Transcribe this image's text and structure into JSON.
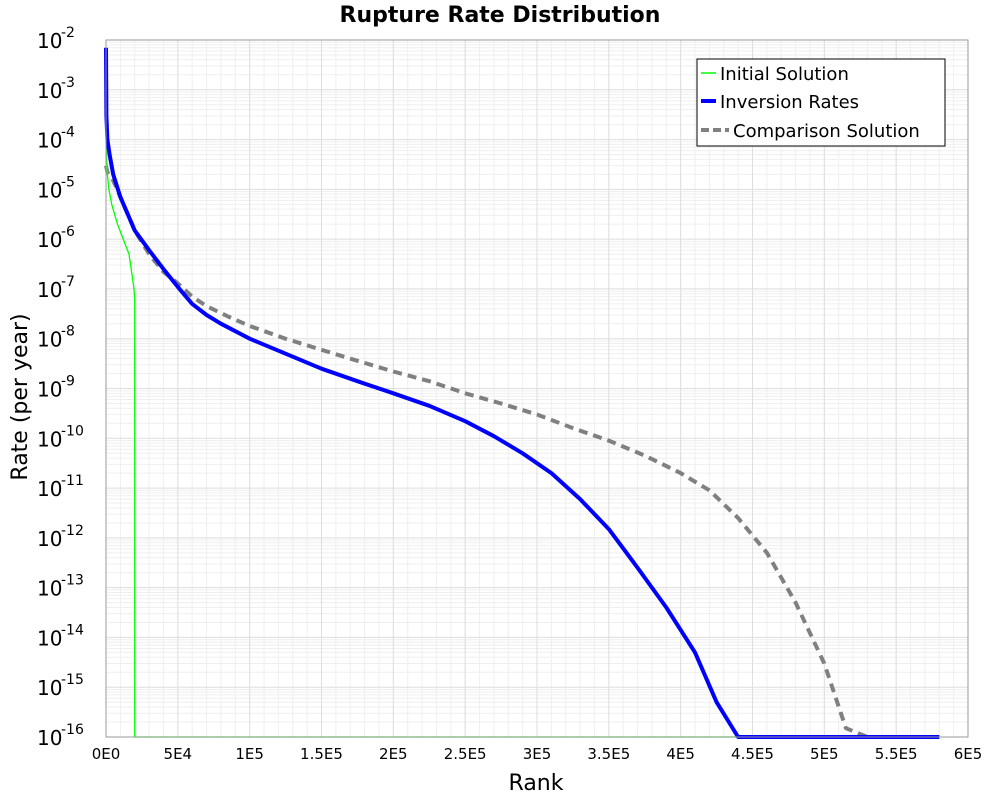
{
  "chart_data": {
    "type": "line",
    "title": "Rupture Rate Distribution",
    "xlabel": "Rank",
    "ylabel": "Rate (per year)",
    "y_scale": "log",
    "xlim": [
      0,
      600000
    ],
    "ylim": [
      1e-16,
      0.01
    ],
    "grid": true,
    "legend_position": "top-right",
    "x_tick_values": [
      0,
      50000,
      100000,
      150000,
      200000,
      250000,
      300000,
      350000,
      400000,
      450000,
      500000,
      550000,
      600000
    ],
    "x_tick_labels": [
      "0E0",
      "5E4",
      "1E5",
      "1.5E5",
      "2E5",
      "2.5E5",
      "3E5",
      "3.5E5",
      "4E5",
      "4.5E5",
      "5E5",
      "5.5E5",
      "6E5"
    ],
    "y_tick_base": "10",
    "y_tick_exponents": [
      "-2",
      "-3",
      "-4",
      "-5",
      "-6",
      "-7",
      "-8",
      "-9",
      "-10",
      "-11",
      "-12",
      "-13",
      "-14",
      "-15",
      "-16"
    ],
    "series": [
      {
        "name": "Initial Solution",
        "color": "#00ff00",
        "style": "solid-thin",
        "x": [
          0,
          500,
          1000,
          2000,
          4000,
          8000,
          12000,
          16000,
          18000,
          19500,
          20000,
          20000,
          580000
        ],
        "y": [
          0.0001,
          4e-05,
          2e-05,
          1e-05,
          5e-06,
          2e-06,
          1e-06,
          5e-07,
          2e-07,
          1e-07,
          6e-08,
          1e-16,
          1e-16
        ]
      },
      {
        "name": "Inversion Rates",
        "color": "#0000ff",
        "style": "solid-thick",
        "x": [
          0,
          300,
          1000,
          2500,
          5000,
          10000,
          20000,
          30000,
          40000,
          50000,
          60000,
          70000,
          80000,
          100000,
          125000,
          150000,
          175000,
          200000,
          225000,
          250000,
          270000,
          290000,
          310000,
          330000,
          350000,
          370000,
          390000,
          410000,
          425000,
          440000,
          455000,
          465000,
          580000
        ],
        "y": [
          0.007,
          0.0003,
          0.0001,
          5e-05,
          2e-05,
          7e-06,
          1.5e-06,
          6e-07,
          2.5e-07,
          1.1e-07,
          5e-08,
          3e-08,
          2e-08,
          1e-08,
          5e-09,
          2.5e-09,
          1.4e-09,
          8e-10,
          4.5e-10,
          2.2e-10,
          1.1e-10,
          5e-11,
          2e-11,
          6e-12,
          1.5e-12,
          2.5e-13,
          4e-14,
          5e-15,
          5e-16,
          5e-17,
          5e-18,
          1e-16,
          1e-16
        ]
      },
      {
        "name": "Comparison Solution",
        "color": "#808080",
        "style": "dashed",
        "x": [
          0,
          1000,
          5000,
          10000,
          20000,
          30000,
          40000,
          50000,
          60000,
          70000,
          85000,
          100000,
          125000,
          150000,
          175000,
          200000,
          225000,
          250000,
          275000,
          300000,
          325000,
          350000,
          375000,
          400000,
          420000,
          440000,
          460000,
          480000,
          500000,
          515000,
          530000
        ],
        "y": [
          3e-05,
          2.2e-05,
          1.5e-05,
          7e-06,
          1.5e-06,
          5e-07,
          2.2e-07,
          1.3e-07,
          7e-08,
          4.5e-08,
          2.8e-08,
          1.8e-08,
          1e-08,
          6e-09,
          3.6e-09,
          2.2e-09,
          1.4e-09,
          8e-10,
          5e-10,
          3e-10,
          1.6e-10,
          9e-11,
          4.5e-11,
          2e-11,
          9e-12,
          2.5e-12,
          5e-13,
          5e-14,
          3e-15,
          1.5e-16,
          1e-16
        ]
      }
    ]
  }
}
